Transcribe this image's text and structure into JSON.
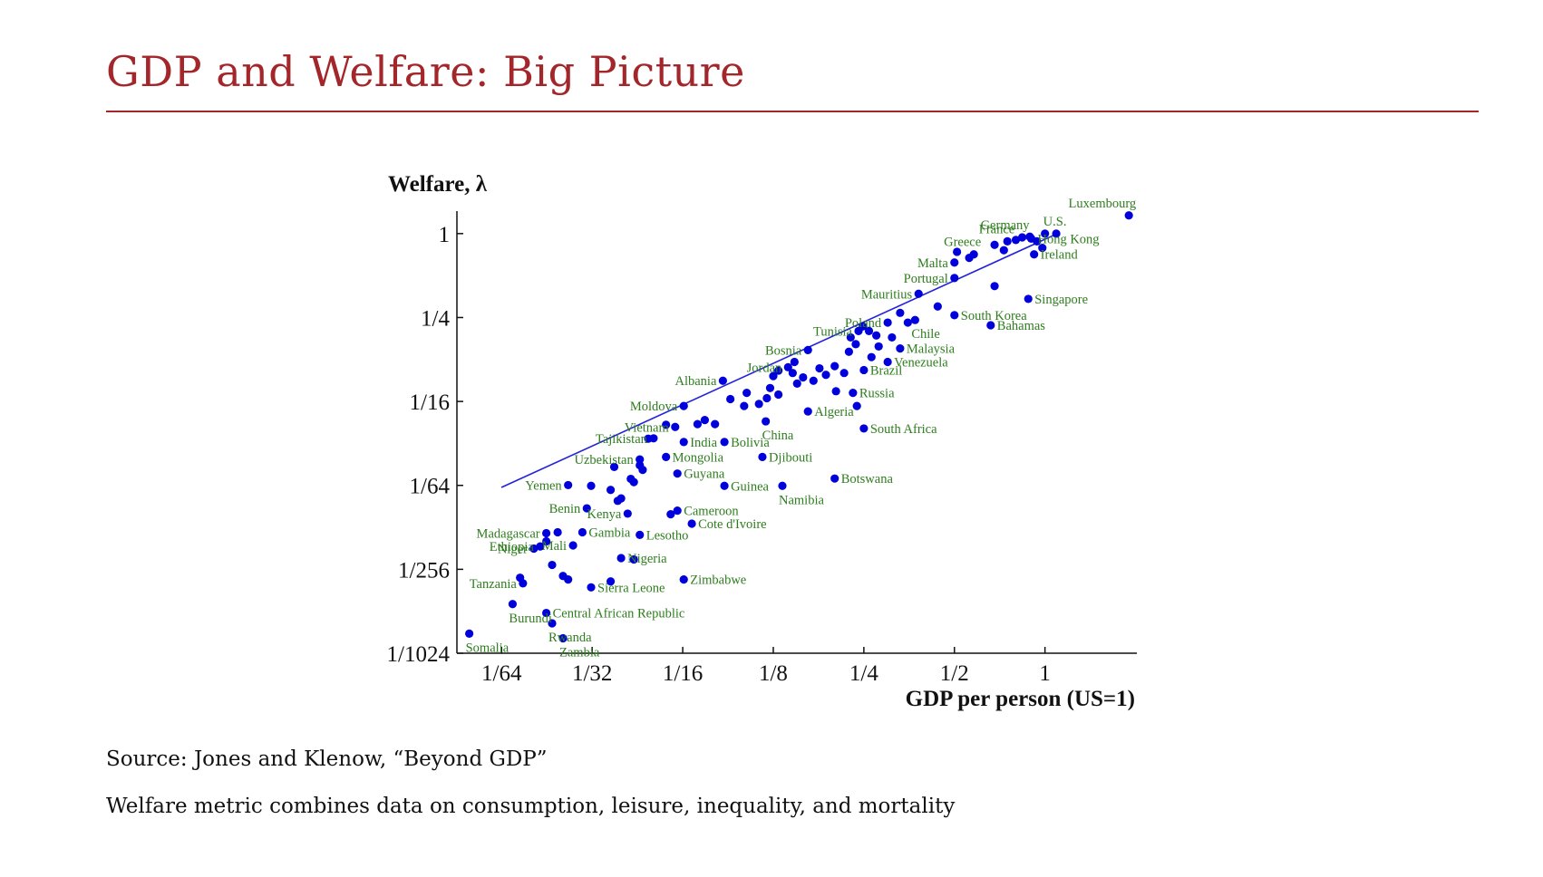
{
  "slide": {
    "title": "GDP and Welfare: Big Picture",
    "source": "Source: Jones and Klenow, “Beyond GDP”",
    "note": "Welfare metric combines data on consumption, leisure, inequality, and mortality"
  },
  "colors": {
    "title": "#a3262a",
    "points": "#0000dd",
    "labels": "#2e7d1e",
    "fit_line": "#2222dd"
  },
  "chart_data": {
    "type": "scatter",
    "xlabel": "GDP per person (US=1)",
    "ylabel": "Welfare, λ",
    "x_scale": "log2",
    "y_scale": "log2",
    "xlim": [
      0.0111,
      2.02
    ],
    "ylim": [
      0.000977,
      1.45
    ],
    "x_ticks": [
      {
        "value": 0.015625,
        "label": "1/64"
      },
      {
        "value": 0.03125,
        "label": "1/32"
      },
      {
        "value": 0.0625,
        "label": "1/16"
      },
      {
        "value": 0.125,
        "label": "1/8"
      },
      {
        "value": 0.25,
        "label": "1/4"
      },
      {
        "value": 0.5,
        "label": "1/2"
      },
      {
        "value": 1,
        "label": "1"
      }
    ],
    "y_ticks": [
      {
        "value": 1,
        "label": "1"
      },
      {
        "value": 0.25,
        "label": "1/4"
      },
      {
        "value": 0.0625,
        "label": "1/16"
      },
      {
        "value": 0.015625,
        "label": "1/64"
      },
      {
        "value": 0.00390625,
        "label": "1/256"
      },
      {
        "value": 0.0009765625,
        "label": "1/1024"
      }
    ],
    "fit_line": {
      "x": [
        0.0156,
        1.1
      ],
      "y": [
        0.0151,
        1.0
      ]
    },
    "legend": "none",
    "labeled_points": [
      {
        "name": "Luxembourg",
        "x": 1.9,
        "y": 1.35
      },
      {
        "name": "U.S.",
        "x": 1.0,
        "y": 1.0
      },
      {
        "name": "Germany",
        "x": 0.84,
        "y": 0.94
      },
      {
        "name": "France",
        "x": 0.75,
        "y": 0.88
      },
      {
        "name": "Hong Kong",
        "x": 0.9,
        "y": 0.92
      },
      {
        "name": "Greece",
        "x": 0.58,
        "y": 0.71
      },
      {
        "name": "Malta",
        "x": 0.5,
        "y": 0.62
      },
      {
        "name": "Ireland",
        "x": 0.92,
        "y": 0.71
      },
      {
        "name": "Portugal",
        "x": 0.5,
        "y": 0.48
      },
      {
        "name": "Singapore",
        "x": 0.88,
        "y": 0.34
      },
      {
        "name": "Mauritius",
        "x": 0.38,
        "y": 0.37
      },
      {
        "name": "South Korea",
        "x": 0.5,
        "y": 0.26
      },
      {
        "name": "Poland",
        "x": 0.3,
        "y": 0.23
      },
      {
        "name": "Chile",
        "x": 0.37,
        "y": 0.24
      },
      {
        "name": "Bahamas",
        "x": 0.66,
        "y": 0.22
      },
      {
        "name": "Tunisia",
        "x": 0.24,
        "y": 0.2
      },
      {
        "name": "Malaysia",
        "x": 0.33,
        "y": 0.15
      },
      {
        "name": "Bosnia",
        "x": 0.163,
        "y": 0.146
      },
      {
        "name": "Venezuela",
        "x": 0.3,
        "y": 0.12
      },
      {
        "name": "Jordan",
        "x": 0.14,
        "y": 0.11
      },
      {
        "name": "Brazil",
        "x": 0.25,
        "y": 0.105
      },
      {
        "name": "Albania",
        "x": 0.085,
        "y": 0.088
      },
      {
        "name": "Russia",
        "x": 0.23,
        "y": 0.072
      },
      {
        "name": "Moldova",
        "x": 0.063,
        "y": 0.058
      },
      {
        "name": "Algeria",
        "x": 0.163,
        "y": 0.053
      },
      {
        "name": "Vietnam",
        "x": 0.059,
        "y": 0.041
      },
      {
        "name": "China",
        "x": 0.118,
        "y": 0.045
      },
      {
        "name": "South Africa",
        "x": 0.25,
        "y": 0.04
      },
      {
        "name": "Tajikistan",
        "x": 0.05,
        "y": 0.034
      },
      {
        "name": "India",
        "x": 0.063,
        "y": 0.032
      },
      {
        "name": "Bolivia",
        "x": 0.086,
        "y": 0.032
      },
      {
        "name": "Uzbekistan",
        "x": 0.045,
        "y": 0.024
      },
      {
        "name": "Mongolia",
        "x": 0.055,
        "y": 0.025
      },
      {
        "name": "Djibouti",
        "x": 0.115,
        "y": 0.025
      },
      {
        "name": "Guyana",
        "x": 0.06,
        "y": 0.019
      },
      {
        "name": "Yemen",
        "x": 0.026,
        "y": 0.0157
      },
      {
        "name": "Guinea",
        "x": 0.086,
        "y": 0.0155
      },
      {
        "name": "Botswana",
        "x": 0.2,
        "y": 0.0175
      },
      {
        "name": "Namibia",
        "x": 0.134,
        "y": 0.0155
      },
      {
        "name": "Benin",
        "x": 0.03,
        "y": 0.0107
      },
      {
        "name": "Kenya",
        "x": 0.041,
        "y": 0.0098
      },
      {
        "name": "Cameroon",
        "x": 0.06,
        "y": 0.0103
      },
      {
        "name": "Cote d'Ivoire",
        "x": 0.067,
        "y": 0.0083
      },
      {
        "name": "Madagascar",
        "x": 0.022,
        "y": 0.0071
      },
      {
        "name": "Gambia",
        "x": 0.029,
        "y": 0.0072
      },
      {
        "name": "Mali",
        "x": 0.027,
        "y": 0.0058
      },
      {
        "name": "Lesotho",
        "x": 0.045,
        "y": 0.0069
      },
      {
        "name": "Niger",
        "x": 0.02,
        "y": 0.0055
      },
      {
        "name": "Ethiopia",
        "x": 0.021,
        "y": 0.0057
      },
      {
        "name": "Nigeria",
        "x": 0.039,
        "y": 0.0047
      },
      {
        "name": "Tanzania",
        "x": 0.0184,
        "y": 0.0031
      },
      {
        "name": "Sierra Leone",
        "x": 0.031,
        "y": 0.0029
      },
      {
        "name": "Zimbabwe",
        "x": 0.063,
        "y": 0.0033
      },
      {
        "name": "Burundi",
        "x": 0.017,
        "y": 0.0022
      },
      {
        "name": "Central African Republic",
        "x": 0.022,
        "y": 0.0019
      },
      {
        "name": "Rwanda",
        "x": 0.023,
        "y": 0.0016
      },
      {
        "name": "Somalia",
        "x": 0.0122,
        "y": 0.00135
      },
      {
        "name": "Zambia",
        "x": 0.025,
        "y": 0.00125
      }
    ],
    "unlabeled_points": [
      [
        0.018,
        0.0034
      ],
      [
        0.025,
        0.0035
      ],
      [
        0.026,
        0.0033
      ],
      [
        0.023,
        0.0042
      ],
      [
        0.022,
        0.0062
      ],
      [
        0.024,
        0.0072
      ],
      [
        0.031,
        0.0155
      ],
      [
        0.036,
        0.0145
      ],
      [
        0.039,
        0.0126
      ],
      [
        0.042,
        0.0174
      ],
      [
        0.043,
        0.0165
      ],
      [
        0.045,
        0.0218
      ],
      [
        0.046,
        0.0202
      ],
      [
        0.037,
        0.0212
      ],
      [
        0.036,
        0.0032
      ],
      [
        0.043,
        0.0046
      ],
      [
        0.038,
        0.0121
      ],
      [
        0.048,
        0.0338
      ],
      [
        0.055,
        0.0425
      ],
      [
        0.057,
        0.0097
      ],
      [
        0.07,
        0.043
      ],
      [
        0.074,
        0.046
      ],
      [
        0.08,
        0.043
      ],
      [
        0.1,
        0.058
      ],
      [
        0.09,
        0.065
      ],
      [
        0.102,
        0.072
      ],
      [
        0.112,
        0.06
      ],
      [
        0.119,
        0.066
      ],
      [
        0.122,
        0.078
      ],
      [
        0.13,
        0.07
      ],
      [
        0.125,
        0.095
      ],
      [
        0.13,
        0.104
      ],
      [
        0.145,
        0.1
      ],
      [
        0.15,
        0.084
      ],
      [
        0.147,
        0.12
      ],
      [
        0.157,
        0.093
      ],
      [
        0.17,
        0.088
      ],
      [
        0.178,
        0.108
      ],
      [
        0.187,
        0.097
      ],
      [
        0.2,
        0.112
      ],
      [
        0.215,
        0.1
      ],
      [
        0.202,
        0.074
      ],
      [
        0.237,
        0.058
      ],
      [
        0.223,
        0.142
      ],
      [
        0.226,
        0.18
      ],
      [
        0.235,
        0.161
      ],
      [
        0.26,
        0.2
      ],
      [
        0.248,
        0.216
      ],
      [
        0.275,
        0.186
      ],
      [
        0.28,
        0.155
      ],
      [
        0.31,
        0.18
      ],
      [
        0.265,
        0.13
      ],
      [
        0.33,
        0.27
      ],
      [
        0.35,
        0.23
      ],
      [
        0.44,
        0.3
      ],
      [
        0.51,
        0.74
      ],
      [
        0.56,
        0.67
      ],
      [
        0.68,
        0.83
      ],
      [
        0.73,
        0.76
      ],
      [
        0.68,
        0.42
      ],
      [
        0.8,
        0.9
      ],
      [
        0.89,
        0.95
      ],
      [
        0.94,
        0.88
      ],
      [
        0.98,
        0.79
      ],
      [
        1.09,
        1.0
      ]
    ]
  }
}
